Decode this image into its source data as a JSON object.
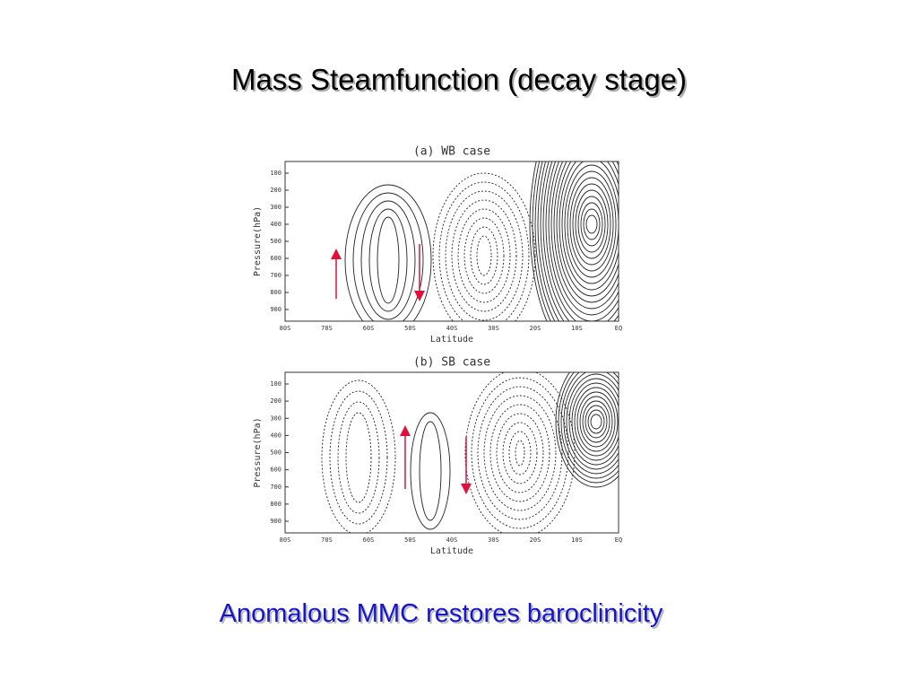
{
  "title": "Mass Steamfunction (decay stage)",
  "panels": [
    {
      "title": "(a) WB case",
      "y_label": "Pressure(hPa)",
      "x_label": "Latitude",
      "yticks": [
        100,
        200,
        300,
        400,
        500,
        600,
        700,
        800,
        900
      ],
      "xticks": [
        "80S",
        "70S",
        "60S",
        "50S",
        "40S",
        "30S",
        "20S",
        "10S",
        "EQ"
      ]
    },
    {
      "title": "(b) SB case",
      "y_label": "Pressure(hPa)",
      "x_label": "Latitude",
      "yticks": [
        100,
        200,
        300,
        400,
        500,
        600,
        700,
        800,
        900
      ],
      "xticks": [
        "80S",
        "70S",
        "60S",
        "50S",
        "40S",
        "30S",
        "20S",
        "10S",
        "EQ"
      ]
    }
  ],
  "caption": "Anomalous MMC restores baroclinicity"
}
